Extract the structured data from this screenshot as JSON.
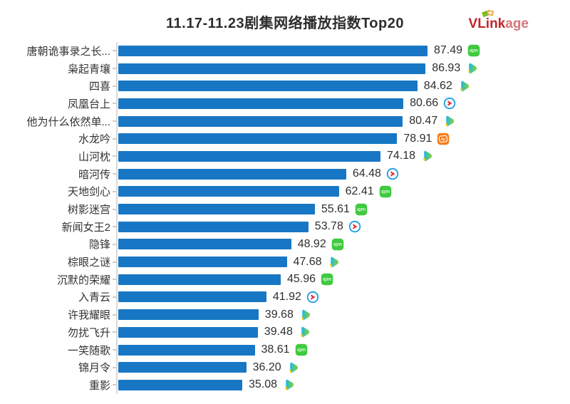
{
  "title": "11.17-11.23剧集网络播放指数Top20",
  "logo": {
    "bold": "VLink",
    "light": "age"
  },
  "chart_data": {
    "type": "bar",
    "orientation": "horizontal",
    "title": "11.17-11.23剧集网络播放指数Top20",
    "value_meaning": "播放指数",
    "max_value": 87.49,
    "bar_color": "#1777c4",
    "grid": false,
    "legend": false,
    "items": [
      {
        "rank": 1,
        "label": "唐朝诡事录之长...",
        "value": 87.49,
        "platform": "iqiyi"
      },
      {
        "rank": 2,
        "label": "枭起青壤",
        "value": 86.93,
        "platform": "tencent"
      },
      {
        "rank": 3,
        "label": "四喜",
        "value": 84.62,
        "platform": "tencent"
      },
      {
        "rank": 4,
        "label": "凤凰台上",
        "value": 80.66,
        "platform": "youku"
      },
      {
        "rank": 5,
        "label": "他为什么依然单...",
        "value": 80.47,
        "platform": "tencent"
      },
      {
        "rank": 6,
        "label": "水龙吟",
        "value": 78.91,
        "platform": "mango"
      },
      {
        "rank": 7,
        "label": "山河枕",
        "value": 74.18,
        "platform": "tencent"
      },
      {
        "rank": 8,
        "label": "暗河传",
        "value": 64.48,
        "platform": "youku"
      },
      {
        "rank": 9,
        "label": "天地剑心",
        "value": 62.41,
        "platform": "iqiyi"
      },
      {
        "rank": 10,
        "label": "树影迷宫",
        "value": 55.61,
        "platform": "iqiyi"
      },
      {
        "rank": 11,
        "label": "新闻女王2",
        "value": 53.78,
        "platform": "youku"
      },
      {
        "rank": 12,
        "label": "隐锋",
        "value": 48.92,
        "platform": "iqiyi"
      },
      {
        "rank": 13,
        "label": "棕眼之谜",
        "value": 47.68,
        "platform": "tencent"
      },
      {
        "rank": 14,
        "label": "沉默的荣耀",
        "value": 45.96,
        "platform": "iqiyi"
      },
      {
        "rank": 15,
        "label": "入青云",
        "value": 41.92,
        "platform": "youku"
      },
      {
        "rank": 16,
        "label": "许我耀眼",
        "value": 39.68,
        "platform": "tencent"
      },
      {
        "rank": 17,
        "label": "勿扰飞升",
        "value": 39.48,
        "platform": "tencent"
      },
      {
        "rank": 18,
        "label": "一笑随歌",
        "value": 38.61,
        "platform": "iqiyi"
      },
      {
        "rank": 19,
        "label": "锦月令",
        "value": 36.2,
        "platform": "tencent"
      },
      {
        "rank": 20,
        "label": "重影",
        "value": 35.08,
        "platform": "tencent"
      }
    ]
  }
}
